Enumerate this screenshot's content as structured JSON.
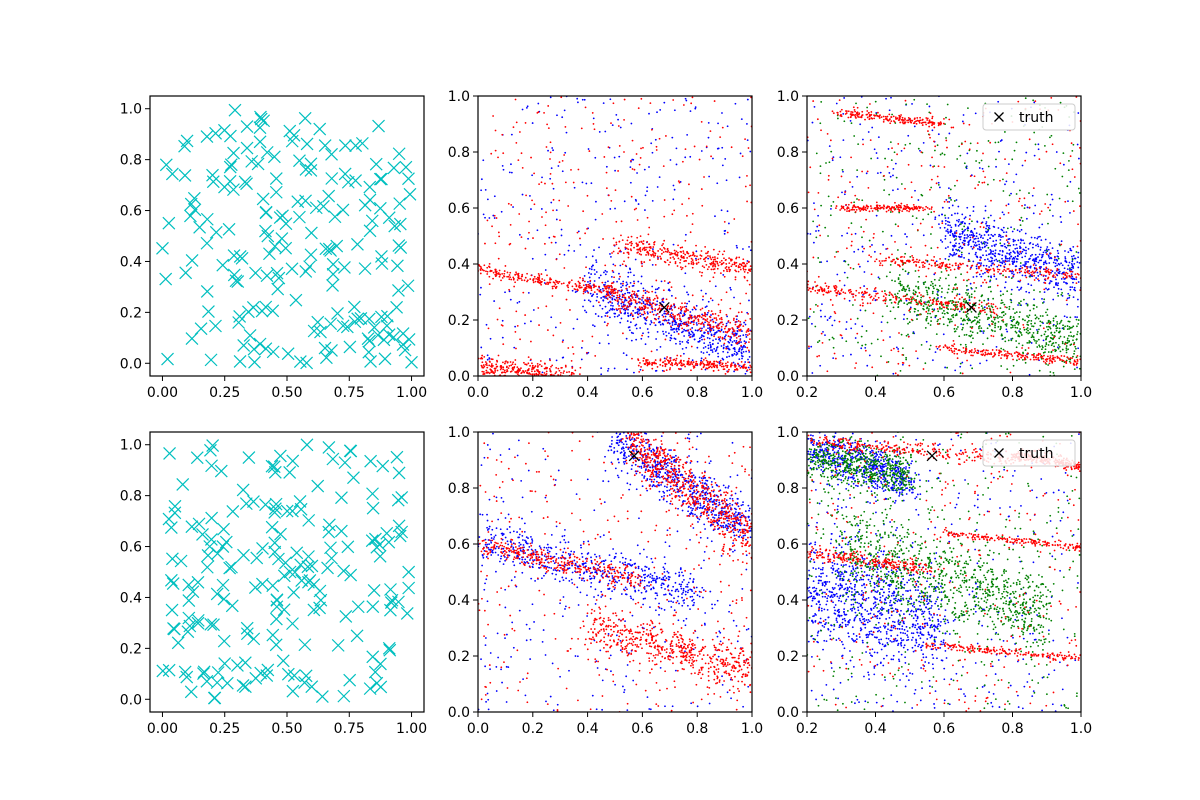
{
  "chart_data": [
    {
      "type": "scatter",
      "row": 0,
      "col": 0,
      "xlim": [
        -0.05,
        1.05
      ],
      "ylim": [
        -0.05,
        1.05
      ],
      "xticks": [
        "0.00",
        "0.25",
        "0.50",
        "0.75",
        "1.00"
      ],
      "yticks": [
        "0.0",
        "0.2",
        "0.4",
        "0.6",
        "0.8",
        "1.0"
      ],
      "series": [
        {
          "color": "#00bfbf",
          "marker": "x",
          "values": "~200 uniformly scattered points over [0,1]x[0,1]"
        }
      ]
    },
    {
      "type": "scatter",
      "row": 0,
      "col": 1,
      "xlim": [
        0,
        1
      ],
      "ylim": [
        0,
        1
      ],
      "xticks": [
        "0.0",
        "0.2",
        "0.4",
        "0.6",
        "0.8",
        "1.0"
      ],
      "yticks": [
        "0.0",
        "0.2",
        "0.4",
        "0.6",
        "0.8",
        "1.0"
      ],
      "series": [
        {
          "color": "#0000ff",
          "marker": ".",
          "bands": [
            {
              "x0": 0.4,
              "y0": 0.33,
              "x1": 1.0,
              "y1": 0.08,
              "spread": 0.05
            }
          ]
        },
        {
          "color": "#ff0000",
          "marker": ".",
          "bands": [
            {
              "x0": 0.45,
              "y0": 0.3,
              "x1": 1.0,
              "y1": 0.15,
              "spread": 0.025
            },
            {
              "x0": 0.0,
              "y0": 0.03,
              "x1": 0.35,
              "y1": 0.0,
              "spread": 0.02
            },
            {
              "x0": 0.0,
              "y0": 0.38,
              "x1": 0.5,
              "y1": 0.3,
              "spread": 0.01
            },
            {
              "x0": 0.5,
              "y0": 0.47,
              "x1": 1.0,
              "y1": 0.38,
              "spread": 0.02
            },
            {
              "x0": 0.6,
              "y0": 0.05,
              "x1": 1.0,
              "y1": 0.03,
              "spread": 0.01
            }
          ]
        }
      ],
      "truth": {
        "x": 0.68,
        "y": 0.245
      }
    },
    {
      "type": "scatter",
      "row": 0,
      "col": 2,
      "xlim": [
        0.2,
        1.0
      ],
      "ylim": [
        0,
        1
      ],
      "xticks": [
        "0.2",
        "0.4",
        "0.6",
        "0.8",
        "1.0"
      ],
      "yticks": [
        "0.0",
        "0.2",
        "0.4",
        "0.6",
        "0.8",
        "1.0"
      ],
      "legend": {
        "label": "truth",
        "placement": "upper right"
      },
      "series": [
        {
          "color": "#0000ff",
          "marker": ".",
          "bands": [
            {
              "x0": 0.6,
              "y0": 0.52,
              "x1": 1.0,
              "y1": 0.35,
              "spread": 0.05
            }
          ]
        },
        {
          "color": "#008000",
          "marker": ".",
          "bands": [
            {
              "x0": 0.45,
              "y0": 0.3,
              "x1": 1.0,
              "y1": 0.12,
              "spread": 0.05
            }
          ]
        },
        {
          "color": "#ff0000",
          "marker": ".",
          "bands": [
            {
              "x0": 0.2,
              "y0": 0.32,
              "x1": 0.75,
              "y1": 0.235,
              "spread": 0.01
            },
            {
              "x0": 0.4,
              "y0": 0.42,
              "x1": 1.0,
              "y1": 0.355,
              "spread": 0.01
            },
            {
              "x0": 0.3,
              "y0": 0.94,
              "x1": 0.6,
              "y1": 0.9,
              "spread": 0.007
            },
            {
              "x0": 0.6,
              "y0": 0.1,
              "x1": 1.0,
              "y1": 0.05,
              "spread": 0.008
            },
            {
              "x0": 0.3,
              "y0": 0.6,
              "x1": 0.55,
              "y1": 0.6,
              "spread": 0.006
            }
          ]
        }
      ],
      "truth": {
        "x": 0.68,
        "y": 0.245
      }
    },
    {
      "type": "scatter",
      "row": 1,
      "col": 0,
      "xlim": [
        -0.05,
        1.05
      ],
      "ylim": [
        -0.05,
        1.05
      ],
      "xticks": [
        "0.00",
        "0.25",
        "0.50",
        "0.75",
        "1.00"
      ],
      "yticks": [
        "0.0",
        "0.2",
        "0.4",
        "0.6",
        "0.8",
        "1.0"
      ],
      "series": [
        {
          "color": "#00bfbf",
          "marker": "x",
          "values": "~200 uniformly scattered points over [0,1]x[0,1]"
        }
      ]
    },
    {
      "type": "scatter",
      "row": 1,
      "col": 1,
      "xlim": [
        0,
        1
      ],
      "ylim": [
        0,
        1
      ],
      "xticks": [
        "0.0",
        "0.2",
        "0.4",
        "0.6",
        "0.8",
        "1.0"
      ],
      "yticks": [
        "0.0",
        "0.2",
        "0.4",
        "0.6",
        "0.8",
        "1.0"
      ],
      "series": [
        {
          "color": "#0000ff",
          "marker": ".",
          "bands": [
            {
              "x0": 0.0,
              "y0": 0.62,
              "x1": 0.8,
              "y1": 0.42,
              "spread": 0.04
            },
            {
              "x0": 0.5,
              "y0": 0.98,
              "x1": 1.0,
              "y1": 0.65,
              "spread": 0.05
            }
          ]
        },
        {
          "color": "#ff0000",
          "marker": ".",
          "bands": [
            {
              "x0": 0.0,
              "y0": 0.6,
              "x1": 0.6,
              "y1": 0.47,
              "spread": 0.02
            },
            {
              "x0": 0.55,
              "y0": 0.97,
              "x1": 1.0,
              "y1": 0.62,
              "spread": 0.05
            },
            {
              "x0": 0.4,
              "y0": 0.3,
              "x1": 1.0,
              "y1": 0.15,
              "spread": 0.04
            }
          ]
        }
      ],
      "truth": {
        "x": 0.57,
        "y": 0.915
      }
    },
    {
      "type": "scatter",
      "row": 1,
      "col": 2,
      "xlim": [
        0.2,
        1.0
      ],
      "ylim": [
        0,
        1
      ],
      "xticks": [
        "0.2",
        "0.4",
        "0.6",
        "0.8",
        "1.0"
      ],
      "yticks": [
        "0.0",
        "0.2",
        "0.4",
        "0.6",
        "0.8",
        "1.0"
      ],
      "legend": {
        "label": "truth",
        "placement": "upper right"
      },
      "series": [
        {
          "color": "#0000ff",
          "marker": ".",
          "bands": [
            {
              "x0": 0.2,
              "y0": 0.95,
              "x1": 0.5,
              "y1": 0.82,
              "spread": 0.04
            },
            {
              "x0": 0.2,
              "y0": 0.45,
              "x1": 0.6,
              "y1": 0.3,
              "spread": 0.1
            }
          ]
        },
        {
          "color": "#008000",
          "marker": ".",
          "bands": [
            {
              "x0": 0.2,
              "y0": 0.9,
              "x1": 0.5,
              "y1": 0.85,
              "spread": 0.04
            },
            {
              "x0": 0.3,
              "y0": 0.6,
              "x1": 0.9,
              "y1": 0.35,
              "spread": 0.08
            }
          ]
        },
        {
          "color": "#ff0000",
          "marker": ".",
          "bands": [
            {
              "x0": 0.2,
              "y0": 0.97,
              "x1": 0.8,
              "y1": 0.9,
              "spread": 0.012
            },
            {
              "x0": 0.2,
              "y0": 0.57,
              "x1": 0.55,
              "y1": 0.51,
              "spread": 0.01
            },
            {
              "x0": 0.55,
              "y0": 0.24,
              "x1": 1.0,
              "y1": 0.19,
              "spread": 0.006
            },
            {
              "x0": 0.6,
              "y0": 0.64,
              "x1": 1.0,
              "y1": 0.59,
              "spread": 0.006
            },
            {
              "x0": 0.8,
              "y0": 0.92,
              "x1": 1.0,
              "y1": 0.88,
              "spread": 0.01
            }
          ]
        }
      ],
      "truth": {
        "x": 0.565,
        "y": 0.915
      }
    }
  ]
}
